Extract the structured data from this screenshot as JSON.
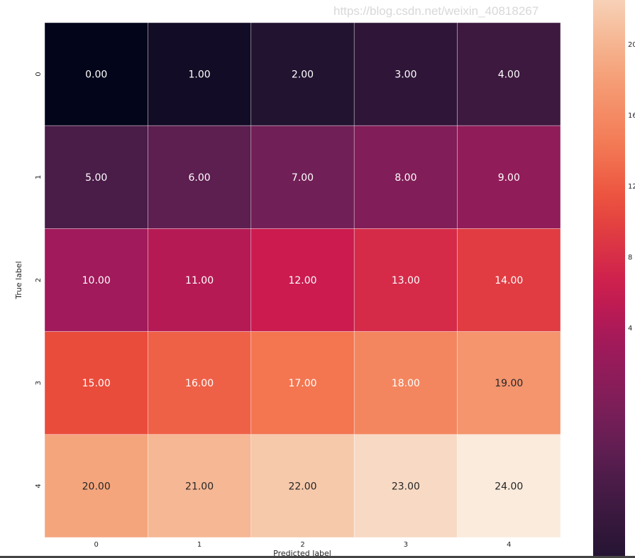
{
  "chart_data": {
    "type": "heatmap",
    "xlabel": "Predicted label",
    "ylabel": "True label",
    "x_categories": [
      "0",
      "1",
      "2",
      "3",
      "4"
    ],
    "y_categories": [
      "0",
      "1",
      "2",
      "3",
      "4"
    ],
    "values": [
      [
        0,
        1,
        2,
        3,
        4
      ],
      [
        5,
        6,
        7,
        8,
        9
      ],
      [
        10,
        11,
        12,
        13,
        14
      ],
      [
        15,
        16,
        17,
        18,
        19
      ],
      [
        20,
        21,
        22,
        23,
        24
      ]
    ],
    "annotation_format": "0.00",
    "colormap": "rocket",
    "vmin": 0,
    "vmax": 24,
    "colorbar_ticks": [
      "20",
      "16",
      "12",
      "8",
      "4"
    ]
  },
  "watermark": "https://blog.csdn.net/weixin_40818267"
}
